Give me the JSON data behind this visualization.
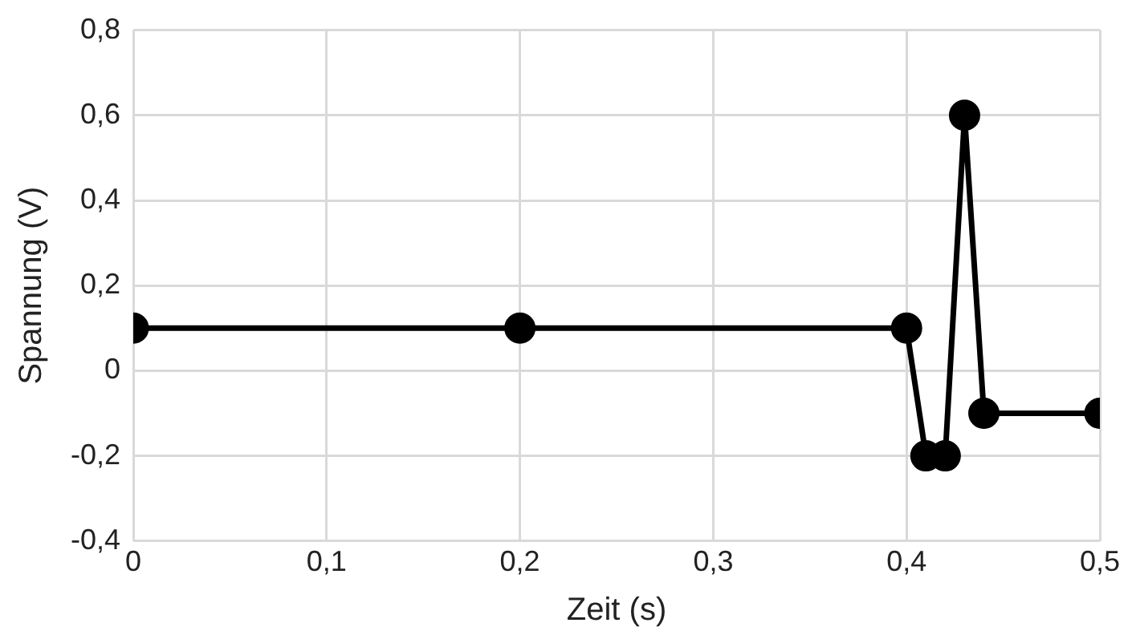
{
  "chart_data": {
    "type": "line",
    "xlabel": "Zeit (s)",
    "ylabel": "Spannung (V)",
    "x": [
      0,
      0.2,
      0.4,
      0.41,
      0.42,
      0.43,
      0.44,
      0.5
    ],
    "series": [
      {
        "color": "#000000",
        "values": [
          0.1,
          0.1,
          0.1,
          -0.2,
          -0.2,
          0.6,
          -0.1,
          -0.1
        ]
      }
    ],
    "xlim": [
      0,
      0.5
    ],
    "ylim": [
      -0.4,
      0.8
    ],
    "xticks": [
      0,
      {
        "value": 0.1,
        "label": "0,1"
      },
      {
        "value": 0.2,
        "label": "0,2"
      },
      {
        "value": 0.3,
        "label": "0,3"
      },
      {
        "value": 0.4,
        "label": "0,4"
      },
      {
        "value": 0.5,
        "label": "0,5"
      }
    ],
    "yticks": [
      {
        "value": -0.4,
        "label": "-0,4"
      },
      {
        "value": -0.2,
        "label": "-0,2"
      },
      0,
      {
        "value": 0.2,
        "label": "0,2"
      },
      {
        "value": 0.4,
        "label": "0,4"
      },
      {
        "value": 0.6,
        "label": "0,6"
      },
      {
        "value": 0.8,
        "label": "0,8"
      }
    ],
    "grid": true,
    "marker": "circle",
    "line_style": "solid",
    "legend": false
  }
}
